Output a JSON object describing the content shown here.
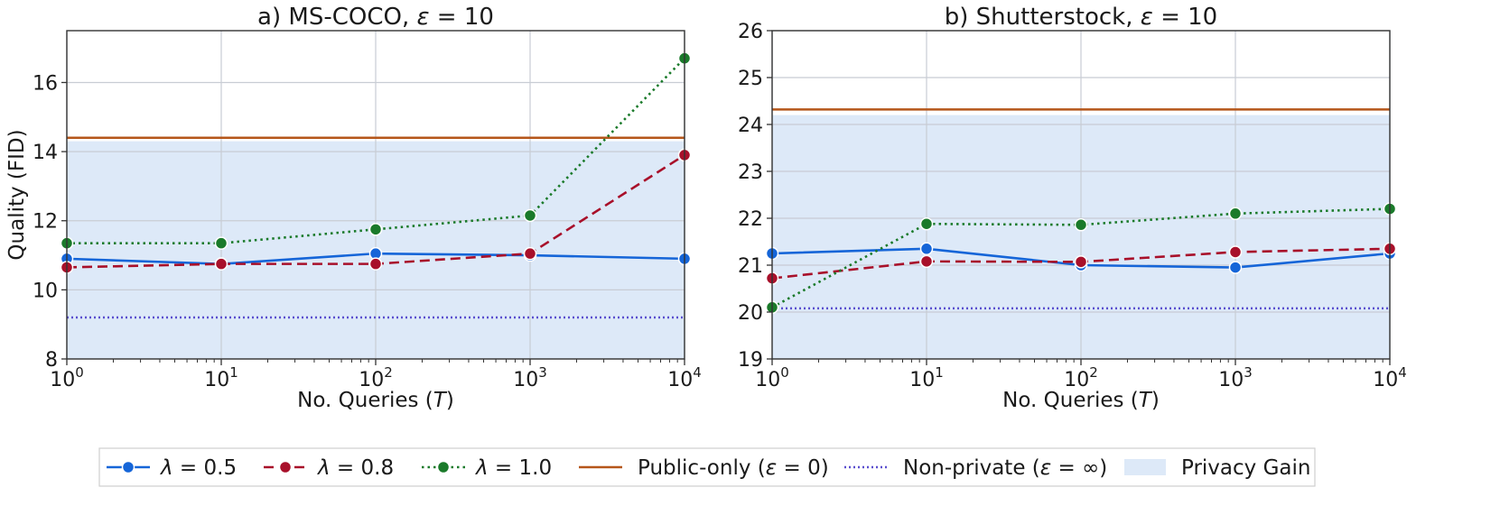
{
  "colors": {
    "lambda_05": "#1565d8",
    "lambda_08": "#a8102a",
    "lambda_10": "#1a7a2a",
    "public_only": "#b5561a",
    "non_private": "#5a4fcf",
    "privacy_gain_fill": "#dde9f8"
  },
  "legend": {
    "items": [
      {
        "key": "l05",
        "label": "λ =  0.5"
      },
      {
        "key": "l08",
        "label": "λ =  0.8"
      },
      {
        "key": "l10",
        "label": "λ =  1.0"
      },
      {
        "key": "pub",
        "label": "Public-only (ε = 0)"
      },
      {
        "key": "np",
        "label": "Non-private (ε = ∞)"
      },
      {
        "key": "pg",
        "label": "Privacy Gain"
      }
    ]
  },
  "chart_data": [
    {
      "type": "line",
      "title": "a) MS-COCO, ε = 10",
      "xlabel": "No. Queries (T)",
      "ylabel": "Quality (FID)",
      "xscale": "log",
      "xlim": [
        1,
        10000
      ],
      "ylim": [
        8,
        17.5
      ],
      "xticks": [
        1,
        10,
        100,
        1000,
        10000
      ],
      "xtick_labels": [
        {
          "base": "10",
          "exp": "0"
        },
        {
          "base": "10",
          "exp": "1"
        },
        {
          "base": "10",
          "exp": "2"
        },
        {
          "base": "10",
          "exp": "3"
        },
        {
          "base": "10",
          "exp": "4"
        }
      ],
      "yticks": [
        8,
        10,
        12,
        14,
        16
      ],
      "grid": true,
      "x": [
        1,
        10,
        100,
        1000,
        10000
      ],
      "series": [
        {
          "key": "l05",
          "values": [
            10.9,
            10.75,
            11.05,
            11.0,
            10.9
          ]
        },
        {
          "key": "l08",
          "values": [
            10.65,
            10.75,
            10.75,
            11.05,
            13.9
          ]
        },
        {
          "key": "l10",
          "values": [
            11.35,
            11.35,
            11.75,
            12.15,
            16.7
          ]
        }
      ],
      "public_only": 14.4,
      "non_private": 9.2,
      "privacy_gain_top": 14.3
    },
    {
      "type": "line",
      "title": "b) Shutterstock, ε = 10",
      "xlabel": "No. Queries (T)",
      "ylabel": "",
      "xscale": "log",
      "xlim": [
        1,
        10000
      ],
      "ylim": [
        19,
        26
      ],
      "xticks": [
        1,
        10,
        100,
        1000,
        10000
      ],
      "xtick_labels": [
        {
          "base": "10",
          "exp": "0"
        },
        {
          "base": "10",
          "exp": "1"
        },
        {
          "base": "10",
          "exp": "2"
        },
        {
          "base": "10",
          "exp": "3"
        },
        {
          "base": "10",
          "exp": "4"
        }
      ],
      "yticks": [
        19,
        20,
        21,
        22,
        23,
        24,
        25,
        26
      ],
      "grid": true,
      "x": [
        1,
        10,
        100,
        1000,
        10000
      ],
      "series": [
        {
          "key": "l05",
          "values": [
            21.25,
            21.35,
            21.0,
            20.95,
            21.25
          ]
        },
        {
          "key": "l08",
          "values": [
            20.72,
            21.08,
            21.07,
            21.28,
            21.35
          ]
        },
        {
          "key": "l10",
          "values": [
            20.1,
            21.88,
            21.86,
            22.1,
            22.2
          ]
        }
      ],
      "public_only": 24.32,
      "non_private": 20.08,
      "privacy_gain_top": 24.2
    }
  ]
}
